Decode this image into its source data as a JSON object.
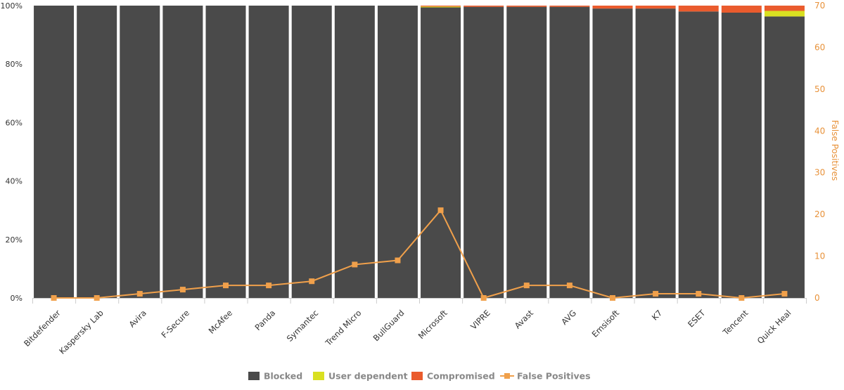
{
  "chart_data": {
    "type": "bar",
    "stacked": true,
    "categories": [
      "Bitdefender",
      "Kaspersky Lab",
      "Avira",
      "F-Secure",
      "McAfee",
      "Panda",
      "Symantec",
      "Trend Micro",
      "BullGuard",
      "Microsoft",
      "VIPRE",
      "Avast",
      "AVG",
      "Emsisoft",
      "K7",
      "ESET",
      "Tencent",
      "Quick Heal"
    ],
    "series": [
      {
        "name": "Blocked",
        "type": "bar",
        "axis": "left",
        "color": "#4a4a4a",
        "values": [
          100,
          100,
          100,
          100,
          100,
          100,
          100,
          100,
          100,
          99.4,
          99.6,
          99.6,
          99.6,
          99.0,
          99.0,
          98.0,
          97.6,
          96.3
        ]
      },
      {
        "name": "User dependent",
        "type": "bar",
        "axis": "left",
        "color": "#d9e021",
        "values": [
          0,
          0,
          0,
          0,
          0,
          0,
          0,
          0,
          0,
          0.3,
          0,
          0,
          0,
          0,
          0,
          0,
          0,
          1.9
        ]
      },
      {
        "name": "Compromised",
        "type": "bar",
        "axis": "left",
        "color": "#ea5b2d",
        "values": [
          0,
          0,
          0,
          0,
          0,
          0,
          0,
          0,
          0,
          0.3,
          0.4,
          0.4,
          0.4,
          1.0,
          1.0,
          2.0,
          2.4,
          1.8
        ]
      },
      {
        "name": "False Positives",
        "type": "line",
        "axis": "right",
        "color": "#f0a04b",
        "values": [
          0,
          0,
          1,
          2,
          3,
          3,
          4,
          8,
          9,
          21,
          0,
          3,
          3,
          0,
          1,
          1,
          0,
          1
        ]
      }
    ],
    "y_left": {
      "ticks": [
        "0%",
        "20%",
        "40%",
        "60%",
        "80%",
        "100%"
      ],
      "range": [
        0,
        100
      ]
    },
    "y_right": {
      "label": "False Positives",
      "ticks": [
        "0",
        "10",
        "20",
        "30",
        "40",
        "50",
        "60",
        "70"
      ],
      "range": [
        0,
        70
      ]
    },
    "legend_position": "bottom-center",
    "grid": false
  }
}
